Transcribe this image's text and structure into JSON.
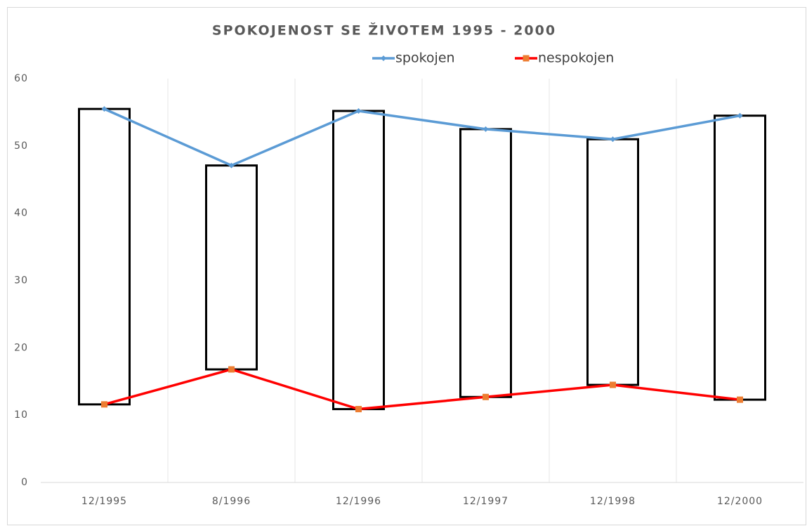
{
  "chart_data": {
    "type": "line",
    "title": "SPOKOJENOST SE ŽIVOTEM 1995 - 2000",
    "categories": [
      "12/1995",
      "8/1996",
      "12/1996",
      "12/1997",
      "12/1998",
      "12/2000"
    ],
    "series": [
      {
        "name": "spokojen",
        "color": "#5b9bd5",
        "marker_color": "#5b9bd5",
        "values": [
          55.5,
          47.1,
          55.2,
          52.5,
          51.0,
          54.5
        ]
      },
      {
        "name": "nespokojen",
        "color": "#ff0000",
        "marker_color": "#ed7d31",
        "values": [
          11.6,
          16.8,
          10.9,
          12.7,
          14.5,
          12.3
        ]
      }
    ],
    "up_down_bars": true,
    "ylim": [
      0,
      60
    ],
    "yticks": [
      0,
      10,
      20,
      30,
      40,
      50,
      60
    ],
    "legend": "top"
  }
}
